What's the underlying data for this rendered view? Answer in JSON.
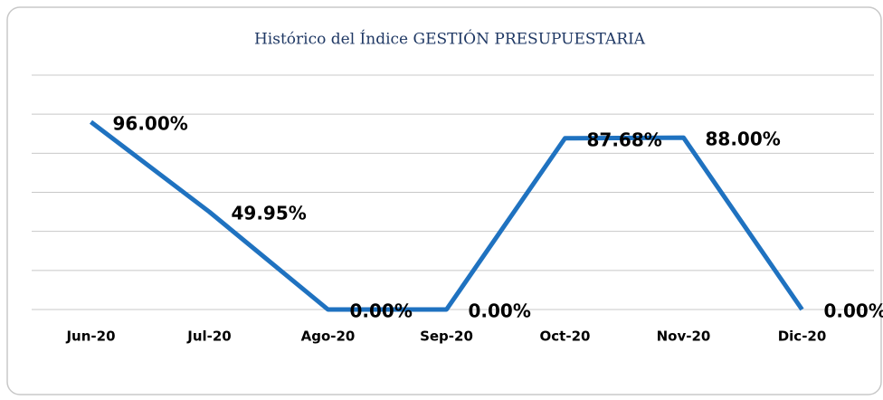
{
  "chart_data": {
    "type": "line",
    "title": "Histórico del Índice GESTIÓN PRESUPUESTARIA",
    "categories": [
      "Jun-20",
      "Jul-20",
      "Ago-20",
      "Sep-20",
      "Oct-20",
      "Nov-20",
      "Dic-20"
    ],
    "values": [
      96,
      49.95,
      0,
      0,
      87.68,
      88,
      0
    ],
    "value_labels": [
      "96.00%",
      "49.95%",
      "0.00%",
      "0.00%",
      "87.68%",
      "88.00%",
      "0.00%"
    ],
    "color": "#1f72c0",
    "ylim": [
      0,
      120
    ],
    "yticks": [
      0,
      20,
      40,
      60,
      80,
      100,
      120
    ],
    "grid": true
  }
}
